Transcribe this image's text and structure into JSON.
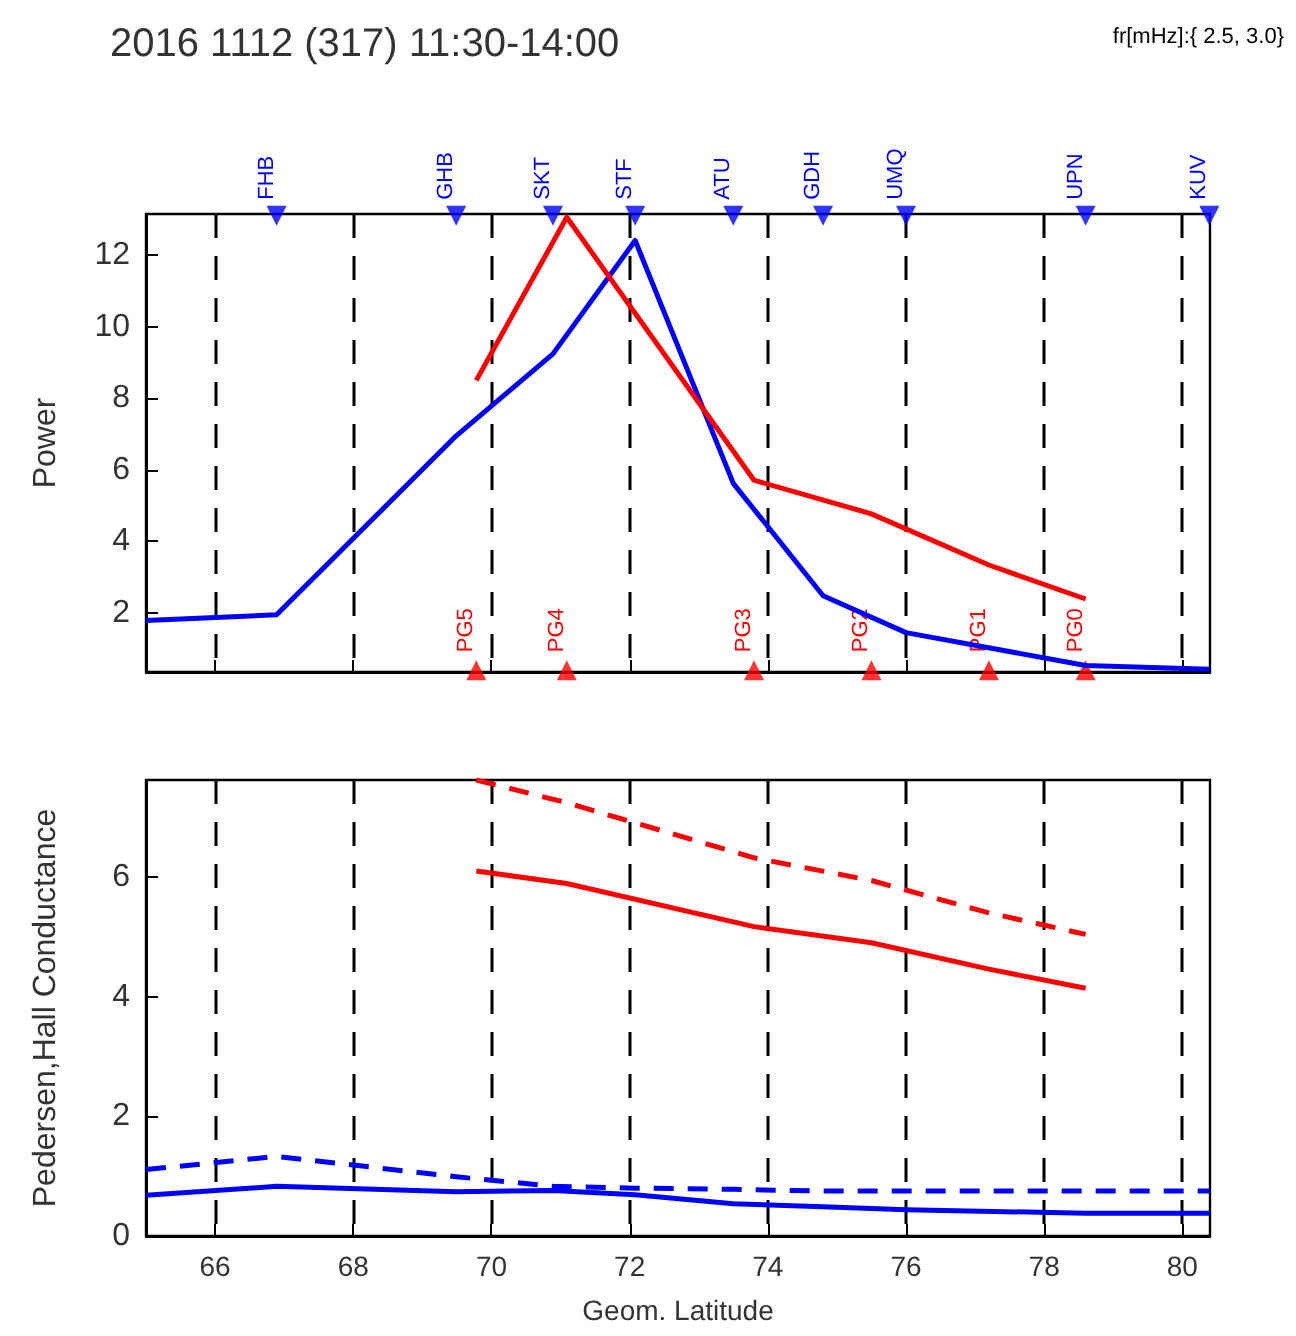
{
  "chart_data": [
    {
      "type": "line",
      "title": "2016 1112 (317) 11:30-14:00",
      "subtitle": "fr[mHz]:{ 2.5, 3.0}",
      "ylabel": "Power",
      "xlim": [
        65,
        80.4
      ],
      "xticks": [
        66,
        68,
        70,
        72,
        74,
        76,
        78,
        80
      ],
      "ylim": [
        0.35,
        13.15
      ],
      "yticks": [
        2,
        4,
        6,
        8,
        10,
        12
      ],
      "grid": "x",
      "tick_labels": "y",
      "marker": "none",
      "series": [
        {
          "color": "#0000ff",
          "x": [
            65,
            66.89,
            69.49,
            70.89,
            72.08,
            73.5,
            74.8,
            76.0,
            78.6,
            80.39
          ],
          "values": [
            1.79,
            1.95,
            6.95,
            9.24,
            12.41,
            5.62,
            2.48,
            1.45,
            0.53,
            0.43
          ]
        },
        {
          "color": "#ff0000",
          "x": [
            69.78,
            71.09,
            73.8,
            75.5,
            77.2,
            78.6
          ],
          "values": [
            8.5,
            13.06,
            5.71,
            4.77,
            3.34,
            2.39
          ]
        },
        {
          "type": "scatter",
          "marker": "triangle",
          "color": "#0000ff",
          "x": [
            66.89,
            69.49,
            70.89,
            72.08,
            73.5,
            74.8,
            76.0,
            78.6,
            80.39
          ],
          "values": [
            13.1,
            13.1,
            13.1,
            13.1,
            13.1,
            13.1,
            13.1,
            13.1,
            13.1
          ]
        },
        {
          "type": "scatter",
          "marker": "triangle",
          "color": "#ff0000",
          "x": [
            69.78,
            71.09,
            73.8,
            75.5,
            77.2,
            78.6
          ],
          "values": [
            0.4,
            0.4,
            0.4,
            0.4,
            0.4,
            0.4
          ]
        }
      ],
      "annotations": [
        {
          "text": "FHB",
          "x": 66.89,
          "y": 13.1
        },
        {
          "text": "GHB",
          "x": 69.49,
          "y": 13.1
        },
        {
          "text": "SKT",
          "x": 70.89,
          "y": 13.1
        },
        {
          "text": "STF",
          "x": 72.08,
          "y": 13.1
        },
        {
          "text": "ATU",
          "x": 73.5,
          "y": 13.1
        },
        {
          "text": "GDH",
          "x": 74.8,
          "y": 13.1
        },
        {
          "text": "UMQ",
          "x": 76.0,
          "y": 13.1
        },
        {
          "text": "UPN",
          "x": 78.6,
          "y": 13.1
        },
        {
          "text": "KUV",
          "x": 80.39,
          "y": 13.1
        },
        {
          "text": "PG5",
          "x": 69.78,
          "y": 0.4
        },
        {
          "text": "PG4",
          "x": 71.09,
          "y": 0.4
        },
        {
          "text": "PG3",
          "x": 73.8,
          "y": 0.4
        },
        {
          "text": "PG2",
          "x": 75.5,
          "y": 0.4
        },
        {
          "text": "PG1",
          "x": 77.2,
          "y": 0.4
        },
        {
          "text": "PG0",
          "x": 78.6,
          "y": 0.4
        }
      ]
    },
    {
      "type": "line",
      "xlabel": "Geom. Latitude",
      "ylabel": "Pedersen,Hall Conductance",
      "xlim": [
        65,
        80.4
      ],
      "xticks": [
        66,
        68,
        70,
        72,
        74,
        76,
        78,
        80
      ],
      "ylim": [
        0,
        7.62
      ],
      "yticks": [
        0,
        2,
        4,
        6
      ],
      "grid": "x",
      "marker": "none",
      "series": [
        {
          "color": "#ff0000",
          "line_style": "solid",
          "x": [
            69.78,
            71.09,
            73.8,
            75.5,
            77.2,
            78.6
          ],
          "values": [
            6.1,
            5.89,
            5.17,
            4.9,
            4.46,
            4.14
          ]
        },
        {
          "color": "#ff0000",
          "line_style": "dashed",
          "x": [
            69.78,
            71.09,
            73.8,
            75.5,
            77.2,
            78.6
          ],
          "values": [
            7.62,
            7.24,
            6.32,
            5.94,
            5.4,
            5.04
          ]
        },
        {
          "color": "#0000ff",
          "line_style": "solid",
          "x": [
            65,
            66.89,
            69.49,
            70.89,
            72.08,
            73.5,
            74.8,
            76.0,
            78.6,
            80.39
          ],
          "values": [
            0.68,
            0.83,
            0.74,
            0.76,
            0.69,
            0.54,
            0.49,
            0.44,
            0.38,
            0.38
          ]
        },
        {
          "color": "#0000ff",
          "line_style": "dashed",
          "x": [
            65,
            66.89,
            69.49,
            70.89,
            72.08,
            73.5,
            74.8,
            76.0,
            78.6,
            80.39
          ],
          "values": [
            1.11,
            1.33,
            0.99,
            0.83,
            0.8,
            0.78,
            0.75,
            0.75,
            0.75,
            0.75
          ]
        }
      ]
    }
  ]
}
